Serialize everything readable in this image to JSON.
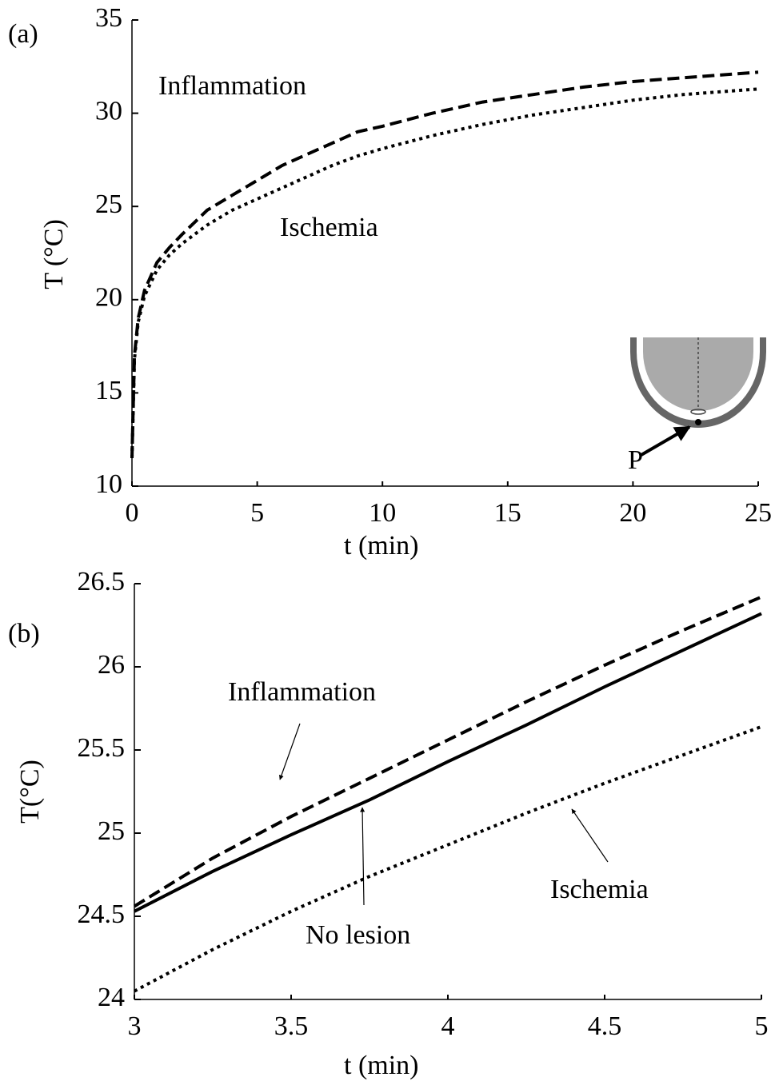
{
  "chart_data": [
    {
      "type": "line",
      "panel_label": "(a)",
      "x_label": "t (min)",
      "y_label": "T (°C)",
      "inset_label": "P",
      "x": [
        0,
        0.1,
        0.25,
        0.5,
        1,
        1.5,
        2,
        3,
        4,
        5,
        6,
        7,
        8,
        9,
        10,
        12,
        14,
        16,
        18,
        20,
        22,
        24,
        25
      ],
      "series": [
        {
          "name": "Inflammation",
          "color": "#000000",
          "style": "dashed",
          "values": [
            11.5,
            17,
            19,
            20.5,
            22,
            22.8,
            23.5,
            24.8,
            25.6,
            26.4,
            27.2,
            27.8,
            28.4,
            29,
            29.3,
            30,
            30.6,
            31,
            31.4,
            31.7,
            31.9,
            32.1,
            32.2
          ]
        },
        {
          "name": "Ischemia",
          "color": "#000000",
          "style": "dotted",
          "values": [
            11.5,
            16.8,
            18.8,
            20.2,
            21.6,
            22.4,
            23,
            24,
            24.8,
            25.4,
            26,
            26.6,
            27.2,
            27.7,
            28.1,
            28.8,
            29.4,
            29.9,
            30.3,
            30.7,
            31,
            31.2,
            31.3
          ]
        }
      ],
      "xlim": [
        0,
        25
      ],
      "xticks": [
        0,
        5,
        10,
        15,
        20,
        25
      ],
      "ylim": [
        10,
        35
      ],
      "yticks": [
        10,
        15,
        20,
        25,
        30,
        35
      ]
    },
    {
      "type": "line",
      "panel_label": "(b)",
      "x_label": "t (min)",
      "y_label": "T(°C)",
      "x": [
        3,
        3.25,
        3.5,
        3.75,
        4,
        4.25,
        4.5,
        4.75,
        5
      ],
      "series": [
        {
          "name": "Inflammation",
          "color": "#000000",
          "style": "dashed",
          "values": [
            24.56,
            24.85,
            25.1,
            25.33,
            25.56,
            25.79,
            26.01,
            26.22,
            26.42
          ]
        },
        {
          "name": "No lesion",
          "color": "#000000",
          "style": "solid",
          "values": [
            24.53,
            24.77,
            24.99,
            25.2,
            25.43,
            25.65,
            25.88,
            26.1,
            26.32
          ]
        },
        {
          "name": "Ischemia",
          "color": "#000000",
          "style": "dotted",
          "values": [
            24.05,
            24.3,
            24.53,
            24.74,
            24.93,
            25.12,
            25.3,
            25.47,
            25.64
          ]
        }
      ],
      "xlim": [
        3,
        5
      ],
      "xticks": [
        3,
        3.5,
        4,
        4.5,
        5
      ],
      "ylim": [
        24,
        26.5
      ],
      "yticks": [
        24,
        24.5,
        25,
        25.5,
        26,
        26.5
      ]
    }
  ]
}
